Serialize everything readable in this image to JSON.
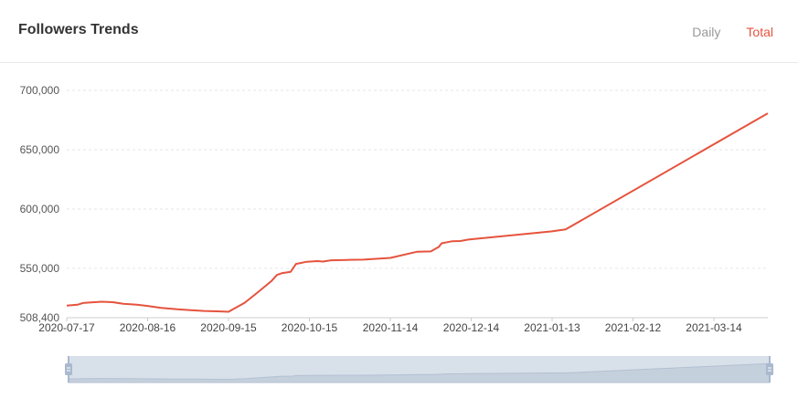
{
  "header": {
    "title": "Followers Trends",
    "tabs": [
      {
        "label": "Daily",
        "active": false
      },
      {
        "label": "Total",
        "active": true
      }
    ]
  },
  "colors": {
    "line": "#e5533d",
    "active_tab": "#e5533d",
    "inactive_tab": "#999999",
    "grid": "#e6e6e6",
    "slider_fill": "#d8e0ea",
    "slider_handle": "#a9b9cf"
  },
  "icons": [
    "slider-handle-left-icon",
    "slider-handle-right-icon"
  ],
  "chart_data": {
    "type": "line",
    "title": "Followers Trends",
    "xlabel": "",
    "ylabel": "",
    "x_range": [
      "2020-07-17",
      "2021-04-03"
    ],
    "ylim": [
      508400,
      710000
    ],
    "y_ticks": [
      508400,
      550000,
      600000,
      650000,
      700000
    ],
    "y_tick_labels": [
      "508,400",
      "550,000",
      "600,000",
      "650,000",
      "700,000"
    ],
    "x_ticks": [
      "2020-07-17",
      "2020-08-16",
      "2020-09-15",
      "2020-10-15",
      "2020-11-14",
      "2020-12-14",
      "2021-01-13",
      "2021-02-12",
      "2021-03-14"
    ],
    "grid": true,
    "legend": "none",
    "series": [
      {
        "points": [
          [
            "2020-07-17",
            518600
          ],
          [
            "2020-07-21",
            519300
          ],
          [
            "2020-07-23",
            520800
          ],
          [
            "2020-07-26",
            521300
          ],
          [
            "2020-07-30",
            521900
          ],
          [
            "2020-08-03",
            521500
          ],
          [
            "2020-08-07",
            520200
          ],
          [
            "2020-08-12",
            519300
          ],
          [
            "2020-08-16",
            518300
          ],
          [
            "2020-08-21",
            516700
          ],
          [
            "2020-08-27",
            515500
          ],
          [
            "2020-09-01",
            514800
          ],
          [
            "2020-09-06",
            514100
          ],
          [
            "2020-09-12",
            513700
          ],
          [
            "2020-09-15",
            513400
          ],
          [
            "2020-09-21",
            521000
          ],
          [
            "2020-09-26",
            530000
          ],
          [
            "2020-10-01",
            539500
          ],
          [
            "2020-10-03",
            544500
          ],
          [
            "2020-10-05",
            546000
          ],
          [
            "2020-10-08",
            547000
          ],
          [
            "2020-10-10",
            553700
          ],
          [
            "2020-10-14",
            555600
          ],
          [
            "2020-10-18",
            556100
          ],
          [
            "2020-10-20",
            555700
          ],
          [
            "2020-10-23",
            556800
          ],
          [
            "2020-10-29",
            557100
          ],
          [
            "2020-11-04",
            557300
          ],
          [
            "2020-11-14",
            558800
          ],
          [
            "2020-11-24",
            564000
          ],
          [
            "2020-11-29",
            564300
          ],
          [
            "2020-12-02",
            568100
          ],
          [
            "2020-12-03",
            571100
          ],
          [
            "2020-12-07",
            572900
          ],
          [
            "2020-12-10",
            573000
          ],
          [
            "2020-12-13",
            574300
          ],
          [
            "2021-01-13",
            581200
          ],
          [
            "2021-01-18",
            582800
          ],
          [
            "2021-04-03",
            680700
          ]
        ]
      }
    ]
  }
}
